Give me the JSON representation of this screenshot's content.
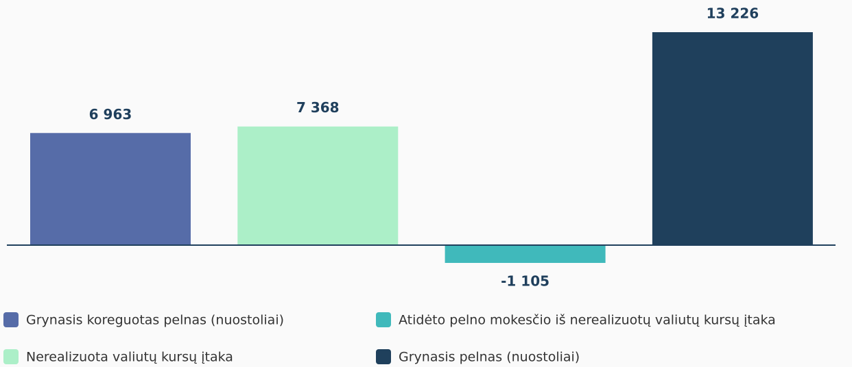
{
  "chart_data": {
    "type": "bar",
    "categories": [
      "Grynasis koreguotas pelnas (nuostoliai)",
      "Nerealizuota valiutų kursų įtaka",
      "Atidėto pelno mokesčio iš nerealizuotų valiutų kursų įtaka",
      "Grynasis pelnas (nuostoliai)"
    ],
    "values": [
      6963,
      7368,
      -1105,
      13226
    ],
    "value_labels": [
      "6 963",
      "7 368",
      "-1 105",
      "13 226"
    ],
    "colors": [
      "#566ca8",
      "#acefc8",
      "#40b9bb",
      "#1f405c"
    ]
  }
}
